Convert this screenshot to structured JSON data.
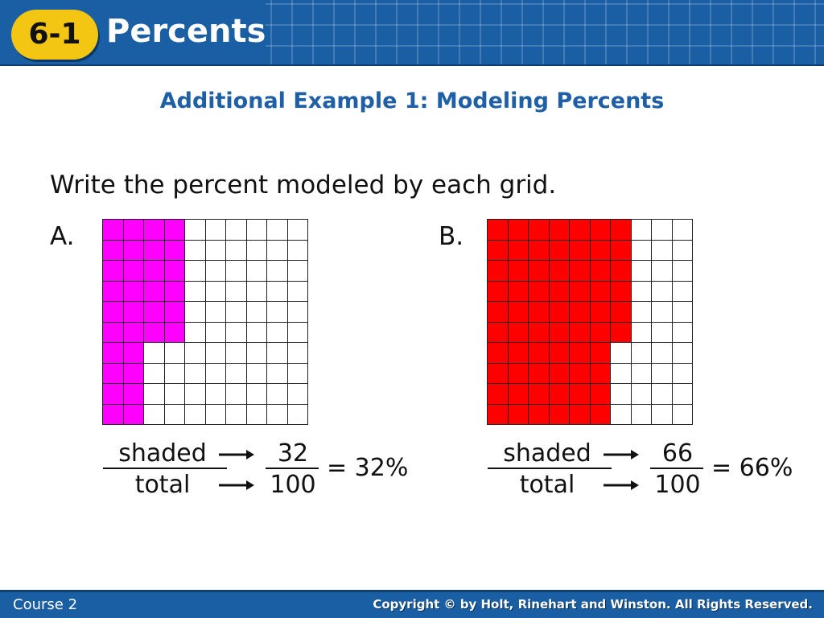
{
  "header": {
    "badge": "6-1",
    "title": "Percents"
  },
  "example_title": "Additional Example 1: Modeling Percents",
  "instruction": "Write the percent modeled by each grid.",
  "parts": [
    {
      "label": "A.",
      "color": "#ff00ff",
      "column_shaded_counts": [
        10,
        10,
        6,
        6,
        0,
        0,
        0,
        0,
        0,
        0
      ],
      "numerator_word": "shaded",
      "denominator_word": "total",
      "numerator": "32",
      "denominator": "100",
      "result": "= 32%"
    },
    {
      "label": "B.",
      "color": "#ff0000",
      "column_shaded_counts": [
        10,
        10,
        10,
        10,
        10,
        10,
        6,
        0,
        0,
        0
      ],
      "numerator_word": "shaded",
      "denominator_word": "total",
      "numerator": "66",
      "denominator": "100",
      "result": "= 66%"
    }
  ],
  "footer": {
    "course": "Course 2",
    "copyright": "Copyright © by Holt, Rinehart and Winston. All Rights Reserved."
  }
}
